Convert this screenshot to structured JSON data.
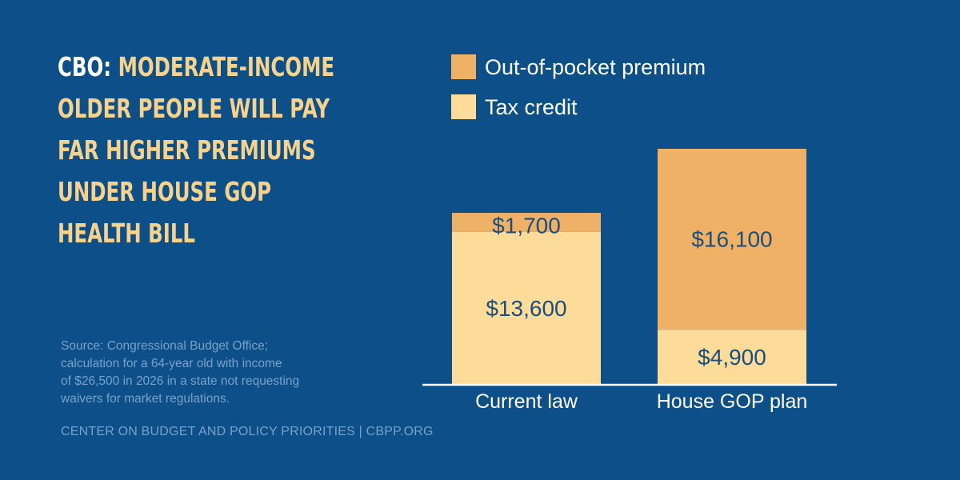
{
  "headline": {
    "lead": "CBO:",
    "rest_lines": [
      "Moderate-Income",
      "Older People Will Pay",
      "Far Higher Premiums",
      "Under House GOP",
      "Health Bill"
    ]
  },
  "source_lines": [
    "Source: Congressional Budget Office;",
    "calculation for a 64-year old with income",
    "of $26,500 in 2026 in a state not requesting",
    "waivers for market regulations."
  ],
  "footer": "CENTER ON BUDGET AND POLICY PRIORITIES | CBPP.ORG",
  "colors": {
    "background": "#0c4f89",
    "out_of_pocket": "#eeb166",
    "tax_credit": "#fddb98",
    "headline_accent": "#f6d28b",
    "value_text": "#1a4e7e",
    "axis_line": "#ffffff"
  },
  "chart_data": {
    "type": "bar",
    "stacked": true,
    "categories": [
      "Current law",
      "House GOP plan"
    ],
    "series": [
      {
        "name": "Tax credit",
        "values": [
          13600,
          4900
        ],
        "labels": [
          "$13,600",
          "$4,900"
        ]
      },
      {
        "name": "Out-of-pocket premium",
        "values": [
          1700,
          16100
        ],
        "labels": [
          "$1,700",
          "$16,100"
        ]
      }
    ],
    "legend": [
      "Out-of-pocket premium",
      "Tax credit"
    ],
    "legend_position": "top",
    "ylim": [
      0,
      21000
    ],
    "grid": false,
    "title": "",
    "xlabel": "",
    "ylabel": ""
  }
}
